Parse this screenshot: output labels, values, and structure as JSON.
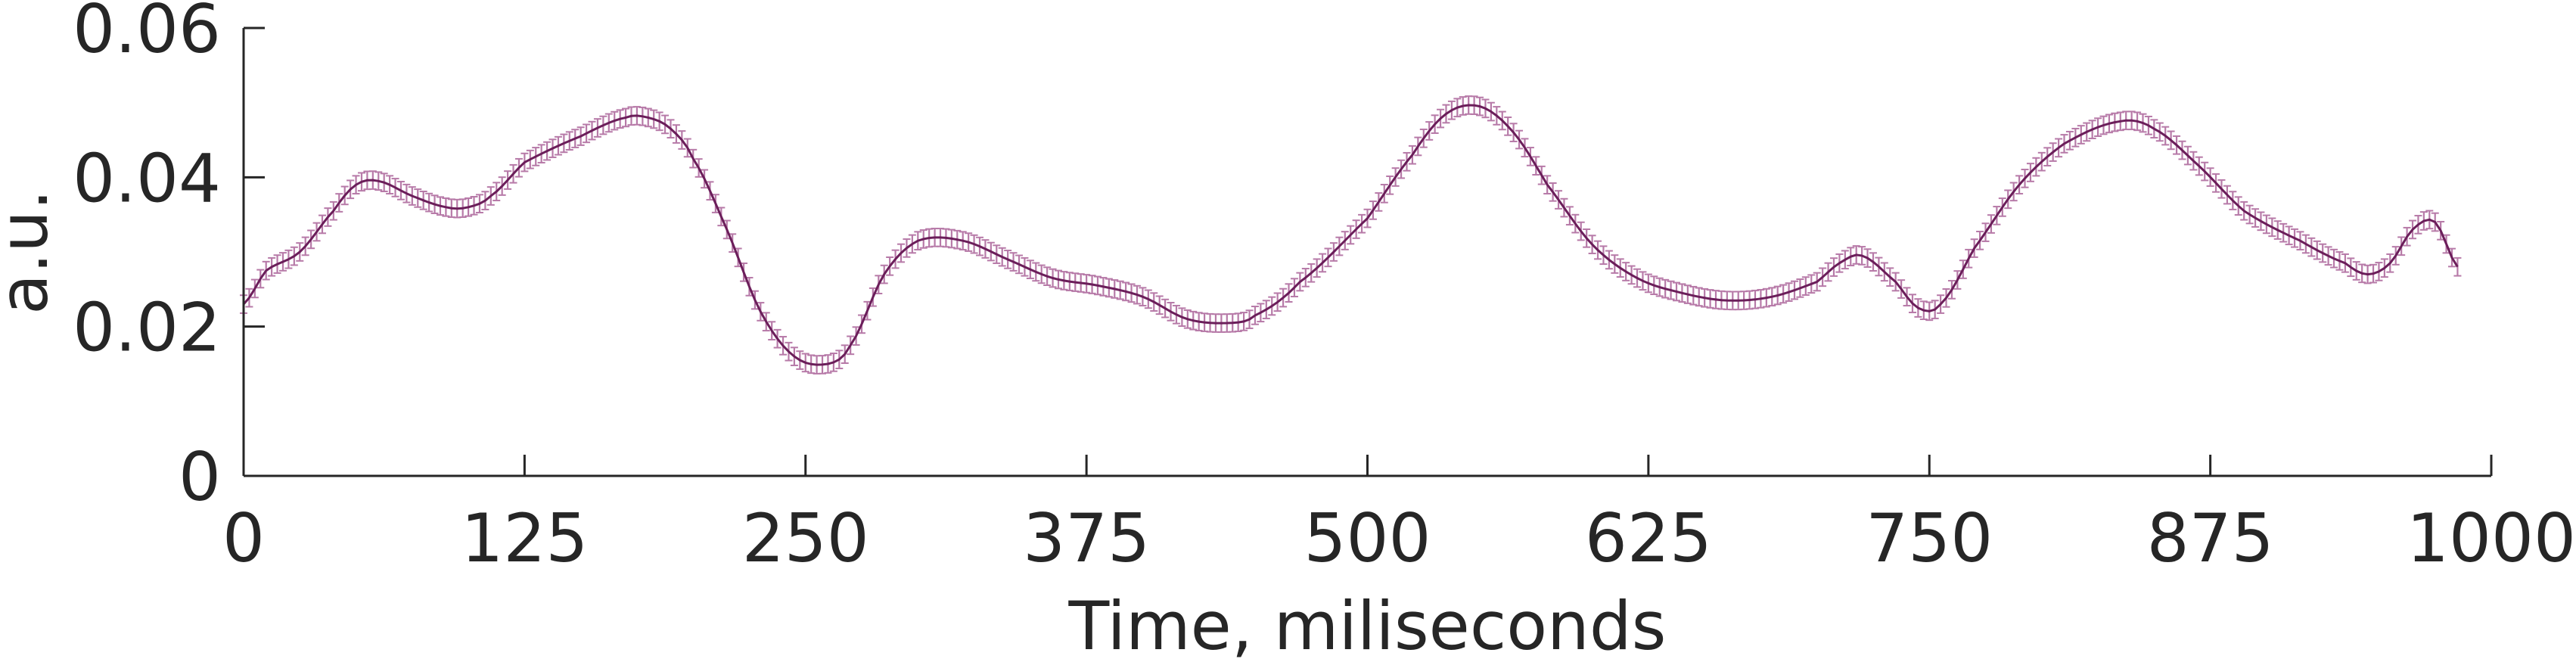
{
  "chart_data": {
    "type": "line",
    "title": "",
    "xlabel": "Time, miliseconds",
    "ylabel": "a.u.",
    "xlim": [
      0,
      1000
    ],
    "ylim": [
      0,
      0.06
    ],
    "xticks": [
      0,
      125,
      250,
      375,
      500,
      625,
      750,
      875,
      1000
    ],
    "xtick_labels": [
      "0",
      "125",
      "250",
      "375",
      "500",
      "625",
      "750",
      "875",
      "1000"
    ],
    "yticks": [
      0,
      0.02,
      0.04,
      0.06
    ],
    "ytick_labels": [
      "0",
      "0.02",
      "0.04",
      "0.06"
    ],
    "grid": false,
    "legend": "none",
    "error_bars": true,
    "colors": {
      "line": "#6b1e5a",
      "error_band": "#b77aa8",
      "axis": "#262626"
    },
    "series": [
      {
        "x": [
          0,
          10,
          25,
          40,
          50,
          60,
          75,
          90,
          100,
          110,
          125,
          150,
          170,
          180,
          190,
          200,
          215,
          230,
          245,
          260,
          270,
          285,
          300,
          320,
          340,
          360,
          380,
          400,
          420,
          440,
          450,
          470,
          500,
          520,
          535,
          550,
          565,
          580,
          600,
          620,
          640,
          660,
          680,
          700,
          710,
          720,
          735,
          745,
          755,
          770,
          790,
          810,
          835,
          850,
          870,
          890,
          915,
          935,
          945,
          955,
          965,
          975,
          985
        ],
        "y": [
          0.023,
          0.0275,
          0.03,
          0.0355,
          0.039,
          0.0395,
          0.0375,
          0.036,
          0.036,
          0.0375,
          0.042,
          0.0455,
          0.048,
          0.048,
          0.0465,
          0.0425,
          0.033,
          0.022,
          0.016,
          0.015,
          0.0175,
          0.027,
          0.0315,
          0.0315,
          0.029,
          0.0265,
          0.0255,
          0.024,
          0.021,
          0.0205,
          0.0215,
          0.026,
          0.0345,
          0.043,
          0.0485,
          0.0495,
          0.046,
          0.039,
          0.031,
          0.0265,
          0.0245,
          0.0235,
          0.024,
          0.026,
          0.0285,
          0.0295,
          0.026,
          0.0225,
          0.023,
          0.0305,
          0.039,
          0.0445,
          0.0475,
          0.0465,
          0.0415,
          0.0355,
          0.0315,
          0.0285,
          0.027,
          0.0285,
          0.033,
          0.034,
          0.028
        ],
        "error": 0.0012
      }
    ]
  }
}
